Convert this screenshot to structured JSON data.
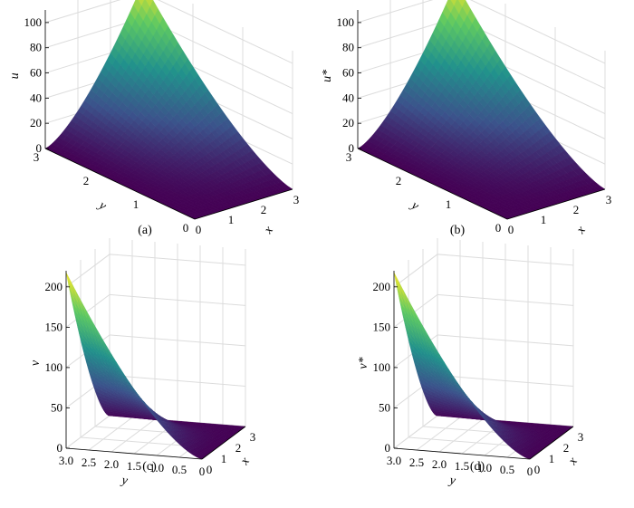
{
  "chart_data": [
    {
      "type": "surface",
      "panel_label": "(a)",
      "zlabel": "u",
      "xlabel": "x",
      "ylabel": "y",
      "x_range": [
        0,
        3
      ],
      "y_range": [
        0,
        3
      ],
      "z_range": [
        0,
        110
      ],
      "x_ticks": [
        "0",
        "1",
        "2",
        "3"
      ],
      "y_ticks": [
        "0",
        "1",
        "2",
        "3"
      ],
      "z_ticks": [
        "0",
        "20",
        "40",
        "60",
        "80",
        "100"
      ],
      "corner_values": {
        "x0_y0": 0,
        "x3_y0": 0,
        "x0_y3": 0,
        "x3_y3": 108
      },
      "grid": true,
      "colormap": [
        "#440154",
        "#3b528b",
        "#21918c",
        "#5ec962",
        "#fde725"
      ]
    },
    {
      "type": "surface",
      "panel_label": "(b)",
      "zlabel": "u*",
      "xlabel": "x",
      "ylabel": "y",
      "x_range": [
        0,
        3
      ],
      "y_range": [
        0,
        3
      ],
      "z_range": [
        0,
        110
      ],
      "x_ticks": [
        "0",
        "1",
        "2",
        "3"
      ],
      "y_ticks": [
        "0",
        "1",
        "2",
        "3"
      ],
      "z_ticks": [
        "0",
        "20",
        "40",
        "60",
        "80",
        "100"
      ],
      "corner_values": {
        "x0_y0": 0,
        "x3_y0": 0,
        "x0_y3": 0,
        "x3_y3": 108
      },
      "grid": true,
      "colormap": [
        "#440154",
        "#3b528b",
        "#21918c",
        "#5ec962",
        "#fde725"
      ]
    },
    {
      "type": "surface",
      "panel_label": "(c)",
      "zlabel": "v",
      "xlabel": "x",
      "ylabel": "y",
      "x_range": [
        0,
        3
      ],
      "y_range": [
        0,
        3
      ],
      "z_range": [
        0,
        220
      ],
      "x_ticks": [
        "0",
        "1",
        "2",
        "3"
      ],
      "y_ticks": [
        "0",
        "0.5",
        "1.0",
        "1.5",
        "2.0",
        "2.5",
        "3.0"
      ],
      "z_ticks": [
        "0",
        "50",
        "100",
        "150",
        "200"
      ],
      "corner_values": {
        "x0_y0": 0,
        "x3_y0": 0,
        "x0_y3": 218,
        "x3_y3": 0
      },
      "grid": true,
      "colormap": [
        "#440154",
        "#3b528b",
        "#21918c",
        "#5ec962",
        "#fde725"
      ]
    },
    {
      "type": "surface",
      "panel_label": "(d)",
      "zlabel": "v*",
      "xlabel": "x",
      "ylabel": "y",
      "x_range": [
        0,
        3
      ],
      "y_range": [
        0,
        3
      ],
      "z_range": [
        0,
        220
      ],
      "x_ticks": [
        "0",
        "1",
        "2",
        "3"
      ],
      "y_ticks": [
        "0",
        "0.5",
        "1.0",
        "1.5",
        "2.0",
        "2.5",
        "3.0"
      ],
      "z_ticks": [
        "0",
        "50",
        "100",
        "150",
        "200"
      ],
      "corner_values": {
        "x0_y0": 0,
        "x3_y0": 0,
        "x0_y3": 218,
        "x3_y3": 0
      },
      "grid": true,
      "colormap": [
        "#440154",
        "#3b528b",
        "#21918c",
        "#5ec962",
        "#fde725"
      ]
    }
  ]
}
